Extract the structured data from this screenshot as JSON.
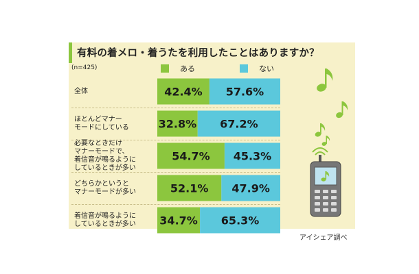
{
  "chart_data": {
    "type": "bar",
    "orientation": "horizontal",
    "stacked": true,
    "title": "有料の着メロ・着うたを利用したことはありますか？",
    "sample_size": "(n=425)",
    "categories": [
      "全体",
      "ほとんどマナー\nモードにしている",
      "必要なときだけ\nマナーモードで、\n着信音が鳴るように\nしているときが多い",
      "どちらかというと\nマナーモードが多い",
      "着信音が鳴るように\nしているときが多い"
    ],
    "series": [
      {
        "name": "ある",
        "color": "#8cc63e",
        "values": [
          42.4,
          32.8,
          54.7,
          52.1,
          34.7
        ],
        "labels": [
          "42.4%",
          "32.8%",
          "54.7%",
          "52.1%",
          "34.7%"
        ]
      },
      {
        "name": "ない",
        "color": "#5bc8dc",
        "values": [
          57.6,
          67.2,
          45.3,
          47.9,
          65.3
        ],
        "labels": [
          "57.6%",
          "67.2%",
          "45.3%",
          "47.9%",
          "65.3%"
        ]
      }
    ],
    "xlim": [
      0,
      100
    ],
    "legend": "top",
    "grid": false,
    "source": "アイシェア調べ"
  },
  "decor": {
    "note_icon": "music-note-icon",
    "phone_icon": "mobile-phone-icon",
    "panel_color": "#f7f1c9",
    "note_color": "#8cc63e"
  }
}
